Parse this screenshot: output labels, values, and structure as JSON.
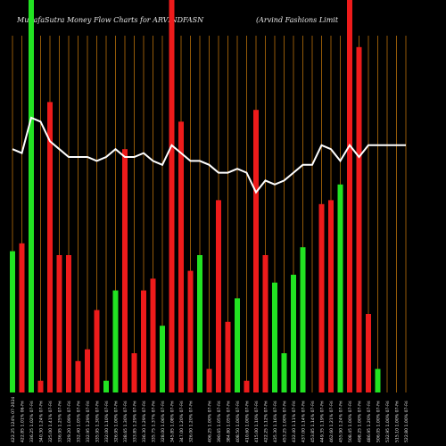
{
  "header": {
    "title": "MunafaSutra  Money Flow  Charts for ARVINDFASN",
    "company": "(Arvind Fashions Limit"
  },
  "colors": {
    "background": "#000000",
    "grid": "#b8700a",
    "up_bar": "#22e322",
    "down_bar": "#ee1b1b",
    "line": "#ffffff",
    "text": "#e6e6e6"
  },
  "chart_data": {
    "type": "bar",
    "title": "MunafaSutra  Money Flow  Charts for ARVINDFASN",
    "subtitle": "(Arvind Fashions Limit",
    "ylim": [
      0,
      100
    ],
    "categories": [
      "422.25 124% 07-2024",
      "422.85 1.01% 06-Fri",
      "336.25 1.02% 07-Fri",
      "340.30 1.24% 07-Fri",
      "325.00 1.41% 07-Fri",
      "336.95 1.25% 07-Fri",
      "329.20 1.09% 07-Fri",
      "332.40 1.05% 07-Fri",
      "332.95 1.29% 07-Fri",
      "335.95 1.30% 07-Fri",
      "332.00 1.10% 07-Fri",
      "326.95 1.00% 07-Fri",
      "338.65 1.30% 07-Fri",
      "333.85 1.29% 07-Fri",
      "336.30 1.29% 07-Fri",
      "335.75 1.37% 07-Fri",
      "328.00 1.06% 07-Fri",
      "345.85 1.08% 07-Fri",
      "347.00 1.20% 07-Fri",
      "326.00 1.20% 07-Fri",
      "",
      "406.25 1.00% 07-Fri",
      "390.65 1.05% 07-Fri",
      "384.80 1.05% 07-Fri",
      "408.50 1.00% 07-Fri",
      "410.60 1.00% 07-Fri",
      "415.00 1.10% 07-Fri",
      "422.25 1.12% 07-Fri",
      "435.30 1.16% 07-Fri",
      "453.25 1.00% 07-Fri",
      "432.40 1.11% 07-Fri",
      "437.00 1.14% 07-Fri",
      "453.85 1.14% 07-Fri",
      "449.35 1.19% 07-Fri",
      "462.60 1.21% 07-Fri",
      "455.90 1.24% 07-Fri",
      "508.45 1.00% 07-Fri",
      "498.25 1.00% 07-Fri",
      "486.95 1.20% 07-Fri",
      "506.05 1.00% 07-Fri",
      "532.95 1.00% 07-Fri",
      "515.10 1.00% 07-Fri",
      "522.80 1.00% 07-Fri"
    ],
    "bar_heights": [
      36,
      38,
      100,
      3,
      74,
      35,
      35,
      8,
      11,
      21,
      3,
      26,
      62,
      10,
      26,
      29,
      17,
      100,
      69,
      31,
      35,
      6,
      49,
      18,
      24,
      3,
      72,
      35,
      28,
      10,
      30,
      37,
      0,
      48,
      49,
      53,
      100,
      88,
      20,
      6,
      0,
      0,
      0
    ],
    "bar_colors": [
      "up",
      "down",
      "up",
      "down",
      "down",
      "down",
      "down",
      "down",
      "down",
      "down",
      "up",
      "up",
      "down",
      "down",
      "down",
      "down",
      "up",
      "down",
      "down",
      "down",
      "up",
      "down",
      "down",
      "down",
      "up",
      "down",
      "down",
      "down",
      "up",
      "up",
      "up",
      "up",
      "up",
      "down",
      "down",
      "up",
      "down",
      "down",
      "down",
      "up",
      "up",
      "up",
      "up"
    ],
    "line_values": [
      62,
      61,
      70,
      69,
      64,
      62,
      60,
      60,
      60,
      59,
      60,
      62,
      60,
      60,
      61,
      59,
      58,
      63,
      61,
      59,
      59,
      58,
      56,
      56,
      57,
      56,
      51,
      54,
      53,
      54,
      56,
      58,
      58,
      63,
      62,
      59,
      63,
      60,
      63,
      63,
      63,
      63,
      63
    ]
  }
}
